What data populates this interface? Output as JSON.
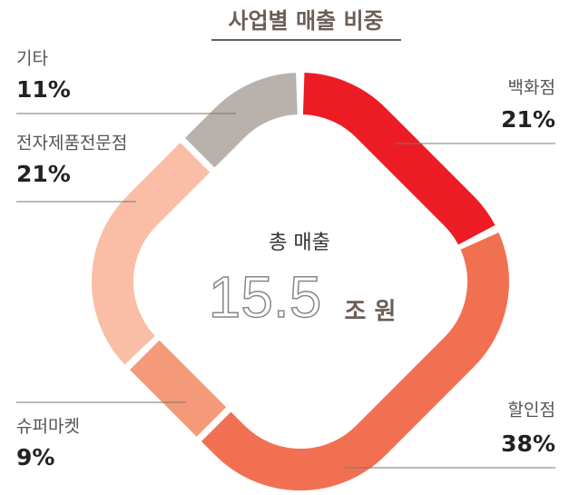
{
  "chart_data": {
    "type": "donut",
    "title": "사업별 매출 비중",
    "center_label": "총 매출",
    "total": "15.5",
    "total_unit": "조 원",
    "categories": [
      "백화점",
      "할인점",
      "슈퍼마켓",
      "전자제품전문점",
      "기타"
    ],
    "values": [
      21,
      38,
      9,
      21,
      11
    ],
    "value_labels": [
      "21%",
      "38%",
      "9%",
      "21%",
      "11%"
    ],
    "colors": [
      "#ed1c24",
      "#f27052",
      "#f49a79",
      "#f9bea5",
      "#b9b1ab"
    ]
  }
}
